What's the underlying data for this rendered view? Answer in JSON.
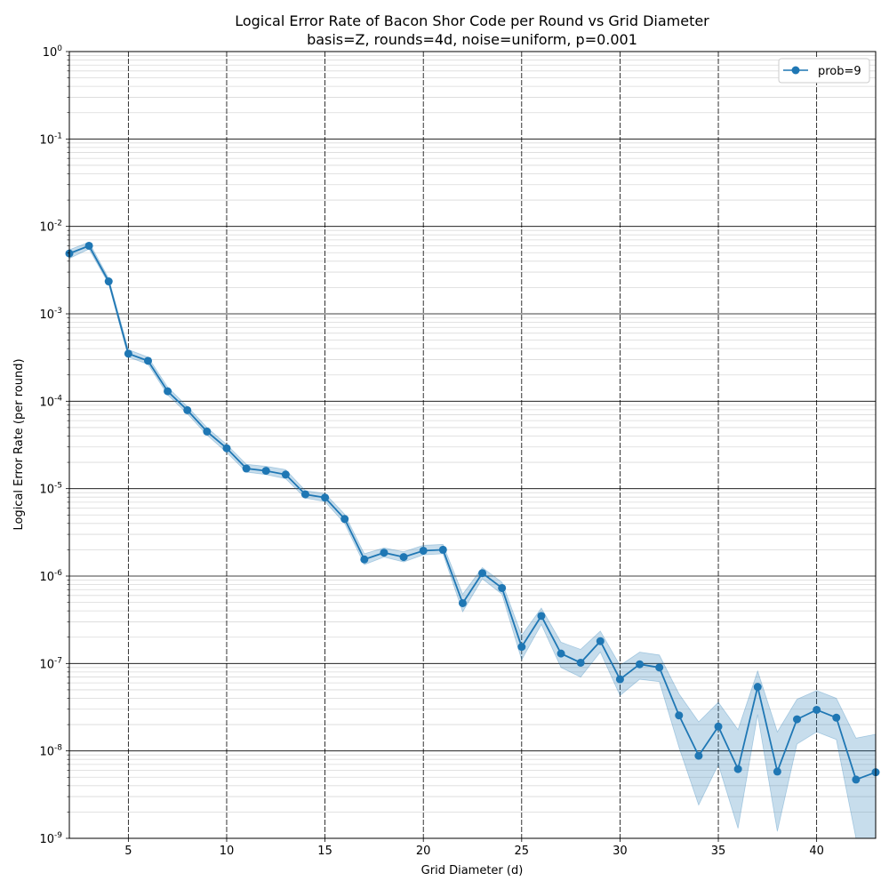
{
  "chart_data": {
    "type": "line",
    "title": "Logical Error Rate of Bacon Shor Code per Round vs Grid Diameter",
    "subtitle": "basis=Z, rounds=4d, noise=uniform, p=0.001",
    "xlabel": "Grid Diameter (d)",
    "ylabel": "Logical Error Rate (per round)",
    "xlim": [
      2,
      43
    ],
    "ylim": [
      1e-09,
      1
    ],
    "yscale": "log",
    "xticks": [
      5,
      10,
      15,
      20,
      25,
      30,
      35,
      40
    ],
    "yticks": [
      {
        "value": 1,
        "label": "10^0"
      },
      {
        "value": 0.1,
        "label": "10^-1"
      },
      {
        "value": 0.01,
        "label": "10^-2"
      },
      {
        "value": 0.001,
        "label": "10^-3"
      },
      {
        "value": 0.0001,
        "label": "10^-4"
      },
      {
        "value": 1e-05,
        "label": "10^-5"
      },
      {
        "value": 1e-06,
        "label": "10^-6"
      },
      {
        "value": 1e-07,
        "label": "10^-7"
      },
      {
        "value": 1e-08,
        "label": "10^-8"
      },
      {
        "value": 1e-09,
        "label": "10^-9"
      }
    ],
    "grid": true,
    "legend_position": "top-right",
    "series": [
      {
        "name": "prob=9",
        "color": "#1f77b4",
        "x": [
          2,
          3,
          4,
          5,
          6,
          7,
          8,
          9,
          10,
          11,
          12,
          13,
          14,
          15,
          16,
          17,
          18,
          19,
          20,
          21,
          22,
          23,
          24,
          25,
          26,
          27,
          28,
          29,
          30,
          31,
          32,
          33,
          34,
          35,
          36,
          37,
          38,
          39,
          40,
          41,
          42,
          43
        ],
        "y": [
          0.0049,
          0.006,
          0.00235,
          0.00035,
          0.00029,
          0.00013,
          7.9e-05,
          4.5e-05,
          2.9e-05,
          1.7e-05,
          1.6e-05,
          1.45e-05,
          8.6e-06,
          7.9e-06,
          4.5e-06,
          1.55e-06,
          1.85e-06,
          1.65e-06,
          1.95e-06,
          2e-06,
          4.9e-07,
          1.08e-06,
          7.3e-07,
          1.55e-07,
          3.5e-07,
          1.3e-07,
          1.02e-07,
          1.8e-07,
          6.6e-08,
          9.8e-08,
          9e-08,
          2.55e-08,
          8.8e-09,
          1.9e-08,
          6.2e-09,
          5.4e-08,
          5.8e-09,
          2.3e-08,
          2.95e-08,
          2.4e-08,
          4.7e-09,
          5.7e-09
        ],
        "y_lower": [
          0.0043,
          0.0055,
          0.0022,
          0.00032,
          0.000265,
          0.000118,
          7.2e-05,
          4.1e-05,
          2.6e-05,
          1.55e-05,
          1.45e-05,
          1.3e-05,
          7.8e-06,
          7.1e-06,
          4e-06,
          1.35e-06,
          1.65e-06,
          1.45e-06,
          1.75e-06,
          1.8e-06,
          3.9e-07,
          9.3e-07,
          6.2e-07,
          1.1e-07,
          2.8e-07,
          9e-08,
          7e-08,
          1.35e-07,
          4.3e-08,
          6.6e-08,
          6.2e-08,
          1.1e-08,
          2.4e-09,
          7e-09,
          1.3e-09,
          2.6e-08,
          1.2e-09,
          1.2e-08,
          1.65e-08,
          1.35e-08,
          1e-09,
          1e-09
        ],
        "y_upper": [
          0.0054,
          0.0066,
          0.00255,
          0.00039,
          0.00032,
          0.000145,
          8.7e-05,
          5e-05,
          3.2e-05,
          1.9e-05,
          1.8e-05,
          1.65e-05,
          9.5e-06,
          8.8e-06,
          5.1e-06,
          1.8e-06,
          2.1e-06,
          1.9e-06,
          2.25e-06,
          2.3e-06,
          6.2e-07,
          1.25e-06,
          8.5e-07,
          2.1e-07,
          4.3e-07,
          1.75e-07,
          1.45e-07,
          2.35e-07,
          9.5e-08,
          1.35e-07,
          1.25e-07,
          4.5e-08,
          2.15e-08,
          3.6e-08,
          1.75e-08,
          8.2e-08,
          1.65e-08,
          3.9e-08,
          4.9e-08,
          4e-08,
          1.4e-08,
          1.55e-08
        ]
      }
    ]
  }
}
